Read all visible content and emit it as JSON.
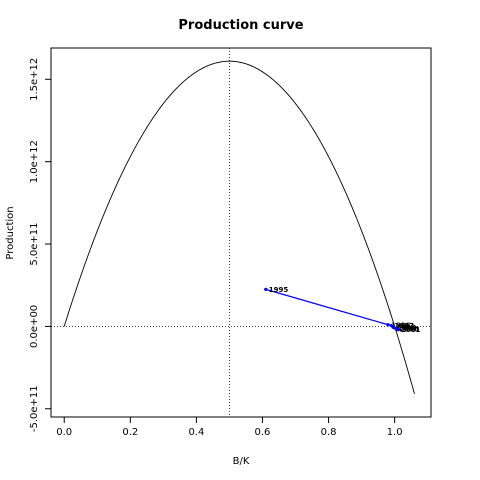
{
  "chart_data": {
    "type": "line",
    "title": "Production curve",
    "xlabel": "B/K",
    "ylabel": "Production",
    "xlim": [
      -0.04,
      1.11
    ],
    "ylim": [
      -550000000000.0,
      1690000000000.0
    ],
    "x_ticks": [
      0,
      0.2,
      0.4,
      0.6,
      0.8,
      1.0
    ],
    "x_tick_labels": [
      "0.0",
      "0.2",
      "0.4",
      "0.6",
      "0.8",
      "1.0"
    ],
    "y_ticks": [
      -500000000000.0,
      0,
      500000000000.0,
      1000000000000.0,
      1500000000000.0
    ],
    "y_tick_labels": [
      "-5.0e+11",
      "0.0e+00",
      "5.0e+11",
      "1.0e+12",
      "1.5e+12"
    ],
    "grid": false,
    "curve": {
      "description": "quadratic production function",
      "peak_x": 0.5,
      "peak_y": 1610000000000.0,
      "x_range": [
        0,
        1.06
      ]
    },
    "reference_lines": [
      {
        "orientation": "vertical",
        "value": 0.5,
        "style": "dotted"
      },
      {
        "orientation": "horizontal",
        "value": 0,
        "style": "dotted"
      }
    ],
    "trajectory": {
      "color": "#0000ff",
      "points": [
        {
          "year": "1995",
          "x": 0.61,
          "y": 225000000000.0
        },
        {
          "year": "1996",
          "x": 0.98,
          "y": 10000000000.0
        },
        {
          "year": "1997",
          "x": 0.99,
          "y": 5000000000.0
        },
        {
          "year": "1998",
          "x": 0.995,
          "y": -5000000000.0
        },
        {
          "year": "1999",
          "x": 1.0,
          "y": -10000000000.0
        },
        {
          "year": "2000",
          "x": 1.005,
          "y": -15000000000.0
        },
        {
          "year": "2001",
          "x": 1.01,
          "y": -20000000000.0
        }
      ]
    }
  }
}
